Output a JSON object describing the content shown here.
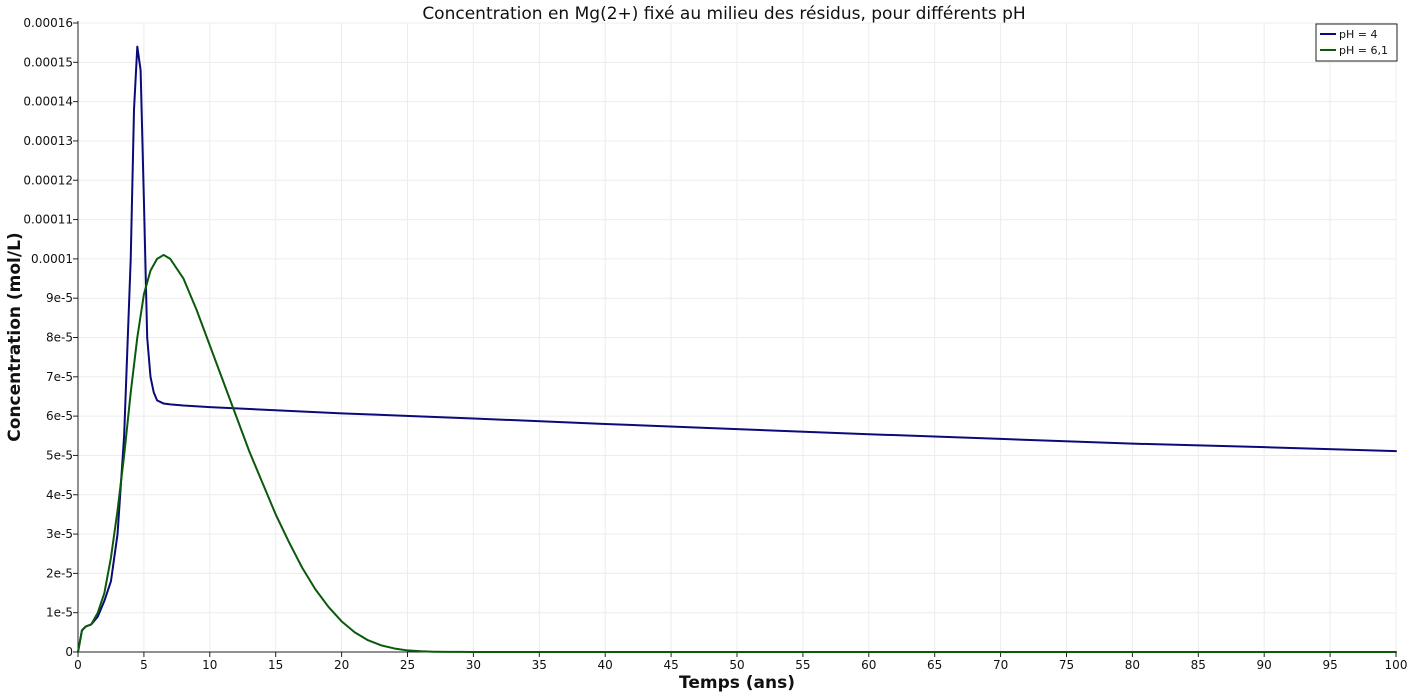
{
  "chart_data": {
    "type": "line",
    "title": "Concentration en Mg(2+) fixé au milieu des résidus, pour différents pH",
    "xlabel": "Temps (ans)",
    "ylabel": "Concentration (mol/L)",
    "xlim": [
      0,
      100
    ],
    "ylim": [
      0,
      0.00016
    ],
    "x_ticks": [
      0,
      5,
      10,
      15,
      20,
      25,
      30,
      35,
      40,
      45,
      50,
      55,
      60,
      65,
      70,
      75,
      80,
      85,
      90,
      95,
      100
    ],
    "x_tick_labels": [
      "0",
      "5",
      "10",
      "15",
      "20",
      "25",
      "30",
      "35",
      "40",
      "45",
      "50",
      "55",
      "60",
      "65",
      "70",
      "75",
      "80",
      "85",
      "90",
      "95",
      "100"
    ],
    "y_ticks": [
      0,
      1e-05,
      2e-05,
      3e-05,
      4e-05,
      5e-05,
      6e-05,
      7e-05,
      8e-05,
      9e-05,
      0.0001,
      0.00011,
      0.00012,
      0.00013,
      0.00014,
      0.00015,
      0.00016
    ],
    "y_tick_labels": [
      "0",
      "1e-5",
      "2e-5",
      "3e-5",
      "4e-5",
      "5e-5",
      "6e-5",
      "7e-5",
      "8e-5",
      "9e-5",
      "0.0001",
      "0.00011",
      "0.00012",
      "0.00013",
      "0.00014",
      "0.00015",
      "0.00016"
    ],
    "grid": true,
    "legend_position": "top-right",
    "series": [
      {
        "name": "pH = 4",
        "color": "#0a0a7a",
        "x": [
          0,
          0.3,
          0.6,
          1.0,
          1.5,
          2.0,
          2.5,
          3.0,
          3.5,
          4.0,
          4.25,
          4.5,
          4.75,
          5.0,
          5.25,
          5.5,
          5.75,
          6.0,
          6.5,
          7.0,
          8.0,
          10,
          20,
          30,
          40,
          50,
          60,
          70,
          80,
          90,
          100
        ],
        "y": [
          0,
          5.5e-06,
          6.5e-06,
          7e-06,
          9e-06,
          1.3e-05,
          1.8e-05,
          3e-05,
          5.5e-05,
          0.0001,
          0.000138,
          0.000154,
          0.000148,
          0.000115,
          8e-05,
          7e-05,
          6.6e-05,
          6.4e-05,
          6.32e-05,
          6.3e-05,
          6.27e-05,
          6.23e-05,
          6.07e-05,
          5.94e-05,
          5.8e-05,
          5.67e-05,
          5.54e-05,
          5.42e-05,
          5.3e-05,
          5.21e-05,
          5.11e-05
        ]
      },
      {
        "name": "pH = 6,1",
        "color": "#0a5a0a",
        "x": [
          0,
          0.3,
          0.6,
          1.0,
          1.5,
          2.0,
          2.5,
          3.0,
          3.5,
          4.0,
          4.5,
          5.0,
          5.5,
          6.0,
          6.5,
          7.0,
          8.0,
          9.0,
          10,
          11,
          12,
          13,
          14,
          15,
          16,
          17,
          18,
          19,
          20,
          21,
          22,
          23,
          24,
          25,
          26,
          27,
          28,
          29,
          30,
          35,
          40,
          50,
          60,
          70,
          80,
          90,
          100
        ],
        "y": [
          0,
          5.5e-06,
          6.5e-06,
          7e-06,
          1e-05,
          1.5e-05,
          2.4e-05,
          3.6e-05,
          5e-05,
          6.6e-05,
          8e-05,
          9.1e-05,
          9.7e-05,
          0.0001,
          0.000101,
          0.0001,
          9.5e-05,
          8.7e-05,
          7.8e-05,
          6.9e-05,
          6e-05,
          5.1e-05,
          4.3e-05,
          3.5e-05,
          2.8e-05,
          2.15e-05,
          1.6e-05,
          1.15e-05,
          7.8e-06,
          5e-06,
          3e-06,
          1.7e-06,
          9e-07,
          4e-07,
          1.8e-07,
          8e-08,
          4e-08,
          2e-08,
          1e-08,
          0,
          0,
          0,
          0,
          0,
          0,
          0,
          0
        ]
      }
    ]
  }
}
